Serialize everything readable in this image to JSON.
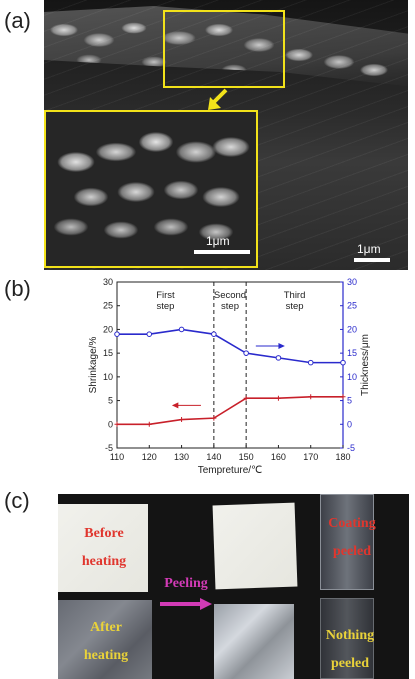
{
  "panels": {
    "a": {
      "label": "(a)",
      "inset_scale_label": "1μm",
      "main_scale_label": "1μm",
      "highlight_color": "#f2e21a"
    },
    "b": {
      "label": "(b)"
    },
    "c": {
      "label": "(c)",
      "before_heating": [
        "Before",
        "heating"
      ],
      "after_heating": [
        "After",
        "heating"
      ],
      "peeling": "Peeling",
      "coating_peeled": [
        "Coating",
        "peeled"
      ],
      "nothing_peeled": [
        "Nothing",
        "peeled"
      ]
    }
  },
  "chart_data": {
    "type": "line",
    "xlabel": "Tempreture/℃",
    "ylabel_left": "Shrinkage/%",
    "ylabel_right": "Thickness/μm",
    "xlim": [
      110,
      180
    ],
    "xticks": [
      110,
      120,
      130,
      140,
      150,
      160,
      170,
      180
    ],
    "ylim_left": [
      -5,
      30
    ],
    "yticks_left": [
      -5,
      0,
      5,
      10,
      15,
      20,
      25,
      30
    ],
    "ylim_right": [
      -5,
      30
    ],
    "yticks_right": [
      -5,
      0,
      5,
      10,
      15,
      20,
      25,
      30
    ],
    "region_labels": [
      {
        "lines": [
          "First",
          "step"
        ],
        "x": 125
      },
      {
        "lines": [
          "Second",
          "step"
        ],
        "x": 145
      },
      {
        "lines": [
          "Third",
          "step"
        ],
        "x": 165
      }
    ],
    "dividers_x": [
      140,
      150
    ],
    "series": [
      {
        "axis": "right",
        "color": "#2a2acc",
        "marker": "open-circle",
        "x": [
          110,
          120,
          130,
          140,
          150,
          160,
          170,
          180
        ],
        "values": [
          19,
          19,
          20,
          19,
          15,
          14,
          13,
          13
        ]
      },
      {
        "axis": "left",
        "color": "#c8202a",
        "marker": "plus",
        "x": [
          110,
          120,
          130,
          140,
          150,
          160,
          170,
          180
        ],
        "values": [
          0,
          0,
          1,
          1.3,
          5.5,
          5.5,
          5.8,
          5.8
        ]
      }
    ],
    "colors": {
      "left_axis": "#222222",
      "right_axis": "#2a2acc"
    }
  }
}
